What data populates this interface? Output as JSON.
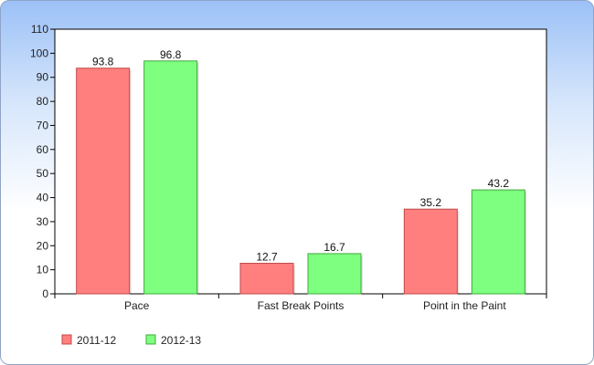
{
  "chart_data": {
    "type": "bar",
    "title": "",
    "xlabel": "",
    "ylabel": "",
    "categories": [
      "Pace",
      "Fast Break Points",
      "Point in the Paint"
    ],
    "series": [
      {
        "name": "2011-12",
        "values": [
          93.8,
          12.7,
          35.2
        ],
        "color": "#ff7f7f",
        "stroke": "#c04a4a"
      },
      {
        "name": "2012-13",
        "values": [
          96.8,
          16.7,
          43.2
        ],
        "color": "#7fff7f",
        "stroke": "#3fa83f"
      }
    ],
    "ylim": [
      0,
      110
    ],
    "yticks": [
      0,
      10,
      20,
      30,
      40,
      50,
      60,
      70,
      80,
      90,
      100,
      110
    ],
    "grid": false,
    "legend_position": "bottom-left",
    "data_labels": true
  }
}
